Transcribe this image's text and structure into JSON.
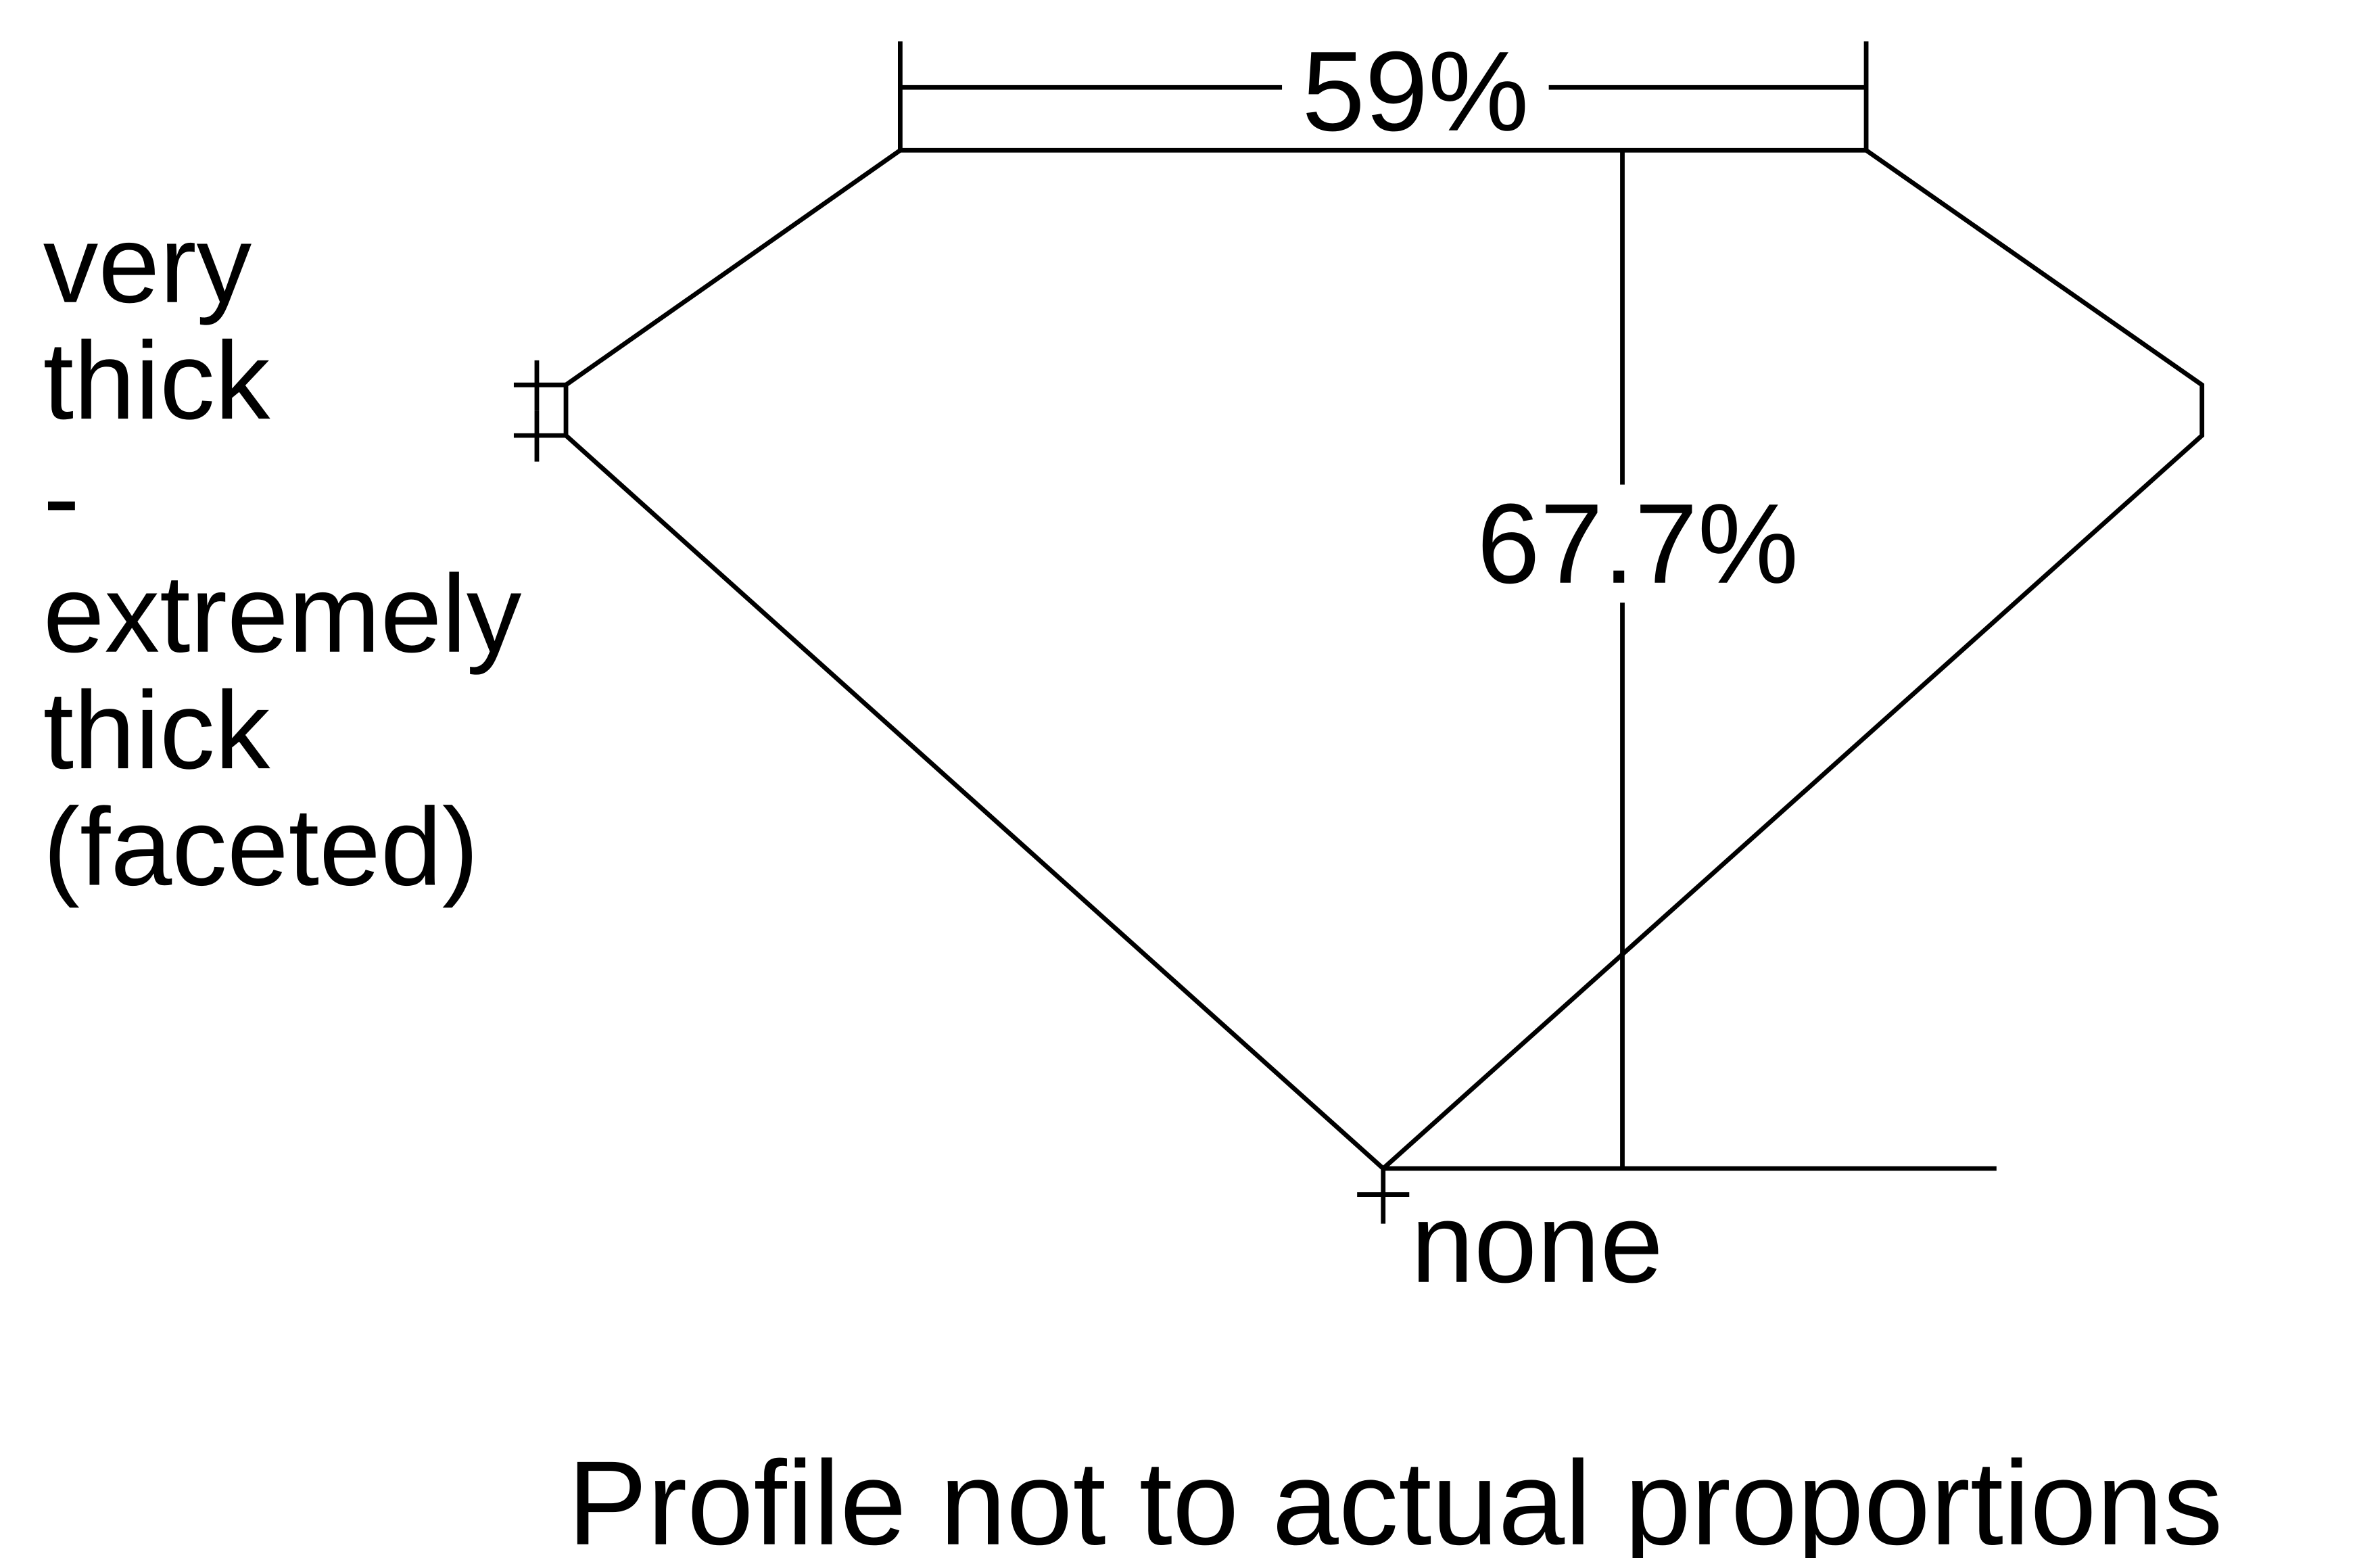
{
  "diagram": {
    "table_percent": "59%",
    "depth_percent": "67.7%",
    "girdle_label_lines": [
      "very",
      "thick",
      "-",
      "extremely",
      "thick",
      "(faceted)"
    ],
    "culet_label": "none",
    "footnote": "Profile not to actual proportions",
    "line_color": "#000000",
    "background_color": "#ffffff"
  }
}
